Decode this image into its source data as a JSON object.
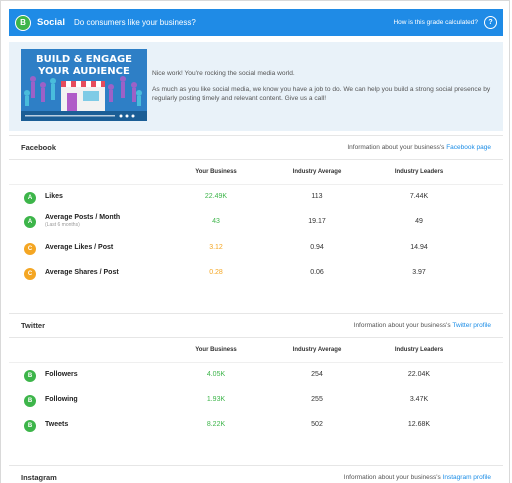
{
  "header": {
    "grade": "B",
    "title": "Social",
    "question": "Do consumers like your business?",
    "how_link": "How is this grade calculated?"
  },
  "banner": {
    "video_title_line1": "BUILD & ENGAGE",
    "video_title_line2": "YOUR AUDIENCE",
    "line1": "Nice work! You're rocking the social media world.",
    "line2": "As much as you like social media, we know you have a job to do. We can help you build a strong social presence by regularly posting timely and relevant content. Give us a call!"
  },
  "columns": {
    "your_business": "Your Business",
    "industry_average": "Industry Average",
    "industry_leaders": "Industry Leaders"
  },
  "facebook": {
    "name": "Facebook",
    "info_prefix": "Information about your business's",
    "info_link": "Facebook page",
    "rows": [
      {
        "grade": "A",
        "label": "Likes",
        "sub": "",
        "yours": "22.49K",
        "avg": "113",
        "leaders": "7.44K"
      },
      {
        "grade": "A",
        "label": "Average Posts / Month",
        "sub": "(Last 6 months)",
        "yours": "43",
        "avg": "19.17",
        "leaders": "49"
      },
      {
        "grade": "C",
        "label": "Average Likes / Post",
        "sub": "",
        "yours": "3.12",
        "avg": "0.94",
        "leaders": "14.94"
      },
      {
        "grade": "C",
        "label": "Average Shares / Post",
        "sub": "",
        "yours": "0.28",
        "avg": "0.06",
        "leaders": "3.97"
      }
    ]
  },
  "twitter": {
    "name": "Twitter",
    "info_prefix": "Information about your business's",
    "info_link": "Twitter profile",
    "rows": [
      {
        "grade": "B",
        "label": "Followers",
        "yours": "4.05K",
        "avg": "254",
        "leaders": "22.04K"
      },
      {
        "grade": "B",
        "label": "Following",
        "yours": "1.93K",
        "avg": "255",
        "leaders": "3.47K"
      },
      {
        "grade": "B",
        "label": "Tweets",
        "yours": "8.22K",
        "avg": "502",
        "leaders": "12.68K"
      }
    ]
  },
  "instagram": {
    "name": "Instagram",
    "info_prefix": "Information about your business's",
    "info_link": "Instagram profile"
  },
  "colors": {
    "header": "#1f8be6",
    "grade_green": "#3db54a",
    "grade_orange": "#f4a623",
    "value_green": "#3db54a",
    "value_orange": "#f4a623",
    "link": "#1a8ce6"
  }
}
